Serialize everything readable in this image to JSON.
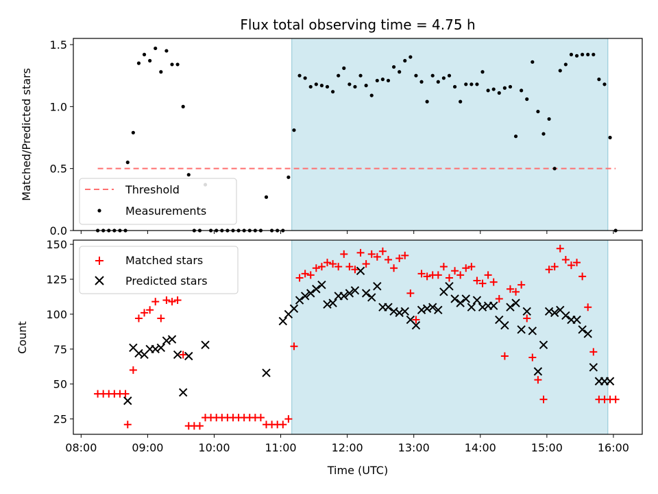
{
  "chart_data": [
    {
      "type": "scatter",
      "title": "Flux total observing time = 4.75 h",
      "ylabel": "Matched/Predicted stars",
      "xlim": [
        "07:53",
        "16:26"
      ],
      "ylim": [
        0,
        1.55
      ],
      "yticks": [
        0,
        0.5,
        1.0,
        1.5
      ],
      "ytick_labels": [
        "0.0",
        "0.5",
        "1.0",
        "1.5"
      ],
      "shaded_interval": {
        "start": "11:10",
        "end": "15:55",
        "color": "#add8e6"
      },
      "threshold": {
        "name": "Threshold",
        "value": 0.5,
        "x": [
          "08:15",
          "16:02"
        ],
        "color": "#ff6f6f"
      },
      "legend": {
        "position": "lower-left",
        "entries": [
          "Threshold",
          "Measurements"
        ]
      },
      "series": [
        {
          "name": "Measurements",
          "color": "#000000",
          "x": [
            "08:15",
            "08:20",
            "08:25",
            "08:30",
            "08:35",
            "08:40",
            "08:42",
            "08:47",
            "08:52",
            "08:57",
            "09:02",
            "09:07",
            "09:12",
            "09:17",
            "09:22",
            "09:27",
            "09:32",
            "09:37",
            "09:42",
            "09:47",
            "09:52",
            "09:57",
            "10:02",
            "10:07",
            "10:12",
            "10:17",
            "10:22",
            "10:27",
            "10:32",
            "10:37",
            "10:42",
            "10:47",
            "10:52",
            "10:57",
            "11:02",
            "11:07",
            "11:12",
            "11:17",
            "11:22",
            "11:27",
            "11:32",
            "11:37",
            "11:42",
            "11:47",
            "11:52",
            "11:57",
            "12:02",
            "12:07",
            "12:12",
            "12:17",
            "12:22",
            "12:27",
            "12:32",
            "12:37",
            "12:42",
            "12:47",
            "12:52",
            "12:57",
            "13:02",
            "13:07",
            "13:12",
            "13:17",
            "13:22",
            "13:27",
            "13:32",
            "13:37",
            "13:42",
            "13:47",
            "13:52",
            "13:57",
            "14:02",
            "14:07",
            "14:12",
            "14:17",
            "14:22",
            "14:27",
            "14:32",
            "14:37",
            "14:42",
            "14:47",
            "14:52",
            "14:57",
            "15:02",
            "15:07",
            "15:12",
            "15:17",
            "15:22",
            "15:27",
            "15:32",
            "15:37",
            "15:42",
            "15:47",
            "15:52",
            "15:57",
            "16:02"
          ],
          "y": [
            0,
            0,
            0,
            0,
            0,
            0,
            0.55,
            0.79,
            1.35,
            1.42,
            1.37,
            1.47,
            1.28,
            1.45,
            1.34,
            1.34,
            1.0,
            0.45,
            0,
            0,
            0.37,
            0,
            0,
            0,
            0,
            0,
            0,
            0,
            0,
            0,
            0,
            0.27,
            0,
            0,
            0,
            0.43,
            0.81,
            1.25,
            1.23,
            1.16,
            1.18,
            1.17,
            1.16,
            1.12,
            1.25,
            1.31,
            1.18,
            1.16,
            1.25,
            1.17,
            1.09,
            1.21,
            1.22,
            1.21,
            1.32,
            1.28,
            1.37,
            1.4,
            1.25,
            1.2,
            1.04,
            1.25,
            1.2,
            1.23,
            1.25,
            1.16,
            1.04,
            1.18,
            1.18,
            1.18,
            1.28,
            1.13,
            1.14,
            1.11,
            1.15,
            1.16,
            0.76,
            1.13,
            1.06,
            1.36,
            0.96,
            0.78,
            0.9,
            0.5,
            1.29,
            1.34,
            1.42,
            1.41,
            1.42,
            1.42,
            1.42,
            1.22,
            1.18,
            0.75,
            0
          ]
        }
      ]
    },
    {
      "type": "scatter",
      "xlabel": "Time (UTC)",
      "ylabel": "Count",
      "xlim": [
        "07:53",
        "16:26"
      ],
      "ylim": [
        14,
        153
      ],
      "yticks": [
        25,
        50,
        75,
        100,
        125,
        150
      ],
      "xticks": [
        "08:00",
        "09:00",
        "10:00",
        "11:00",
        "12:00",
        "13:00",
        "14:00",
        "15:00",
        "16:00"
      ],
      "shaded_interval": {
        "start": "11:10",
        "end": "15:55",
        "color": "#add8e6"
      },
      "legend": {
        "position": "top-left",
        "entries": [
          "Matched stars",
          "Predicted stars"
        ]
      },
      "series": [
        {
          "name": "Matched stars",
          "marker": "+",
          "color": "#ff0000",
          "x": [
            "08:15",
            "08:20",
            "08:25",
            "08:30",
            "08:35",
            "08:40",
            "08:42",
            "08:47",
            "08:52",
            "08:57",
            "09:02",
            "09:07",
            "09:12",
            "09:17",
            "09:22",
            "09:27",
            "09:32",
            "09:37",
            "09:42",
            "09:47",
            "09:52",
            "09:57",
            "10:02",
            "10:07",
            "10:12",
            "10:17",
            "10:22",
            "10:27",
            "10:32",
            "10:37",
            "10:42",
            "10:47",
            "10:52",
            "10:57",
            "11:02",
            "11:07",
            "11:12",
            "11:17",
            "11:22",
            "11:27",
            "11:32",
            "11:37",
            "11:42",
            "11:47",
            "11:52",
            "11:57",
            "12:02",
            "12:07",
            "12:12",
            "12:17",
            "12:22",
            "12:27",
            "12:32",
            "12:37",
            "12:42",
            "12:47",
            "12:52",
            "12:57",
            "13:02",
            "13:07",
            "13:12",
            "13:17",
            "13:22",
            "13:27",
            "13:32",
            "13:37",
            "13:42",
            "13:47",
            "13:52",
            "13:57",
            "14:02",
            "14:07",
            "14:12",
            "14:17",
            "14:22",
            "14:27",
            "14:32",
            "14:37",
            "14:42",
            "14:47",
            "14:52",
            "14:57",
            "15:02",
            "15:07",
            "15:12",
            "15:17",
            "15:22",
            "15:27",
            "15:32",
            "15:37",
            "15:42",
            "15:47",
            "15:52",
            "15:57",
            "16:02"
          ],
          "y": [
            43,
            43,
            43,
            43,
            43,
            43,
            21,
            60,
            97,
            101,
            103,
            109,
            97,
            110,
            109,
            110,
            71,
            20,
            20,
            20,
            26,
            26,
            26,
            26,
            26,
            26,
            26,
            26,
            26,
            26,
            26,
            21,
            21,
            21,
            21,
            25,
            77,
            126,
            129,
            128,
            133,
            134,
            137,
            136,
            134,
            143,
            134,
            132,
            144,
            136,
            143,
            141,
            145,
            139,
            133,
            140,
            142,
            115,
            96,
            129,
            127,
            128,
            128,
            134,
            126,
            131,
            128,
            133,
            134,
            124,
            122,
            128,
            123,
            111,
            70,
            118,
            116,
            121,
            97,
            69,
            53,
            39,
            132,
            134,
            147,
            139,
            135,
            137,
            127,
            105,
            73,
            39,
            39,
            39,
            39
          ]
        },
        {
          "name": "Predicted stars",
          "marker": "x",
          "color": "#000000",
          "x": [
            "08:42",
            "08:47",
            "08:52",
            "08:57",
            "09:02",
            "09:07",
            "09:12",
            "09:17",
            "09:22",
            "09:27",
            "09:32",
            "09:37",
            "09:52",
            "10:47",
            "11:02",
            "11:07",
            "11:12",
            "11:17",
            "11:22",
            "11:27",
            "11:32",
            "11:37",
            "11:42",
            "11:47",
            "11:52",
            "11:57",
            "12:02",
            "12:07",
            "12:12",
            "12:17",
            "12:22",
            "12:27",
            "12:32",
            "12:37",
            "12:42",
            "12:47",
            "12:52",
            "12:57",
            "13:02",
            "13:07",
            "13:12",
            "13:17",
            "13:22",
            "13:27",
            "13:32",
            "13:37",
            "13:42",
            "13:47",
            "13:52",
            "13:57",
            "14:02",
            "14:07",
            "14:12",
            "14:17",
            "14:22",
            "14:27",
            "14:32",
            "14:37",
            "14:42",
            "14:47",
            "14:52",
            "14:57",
            "15:02",
            "15:07",
            "15:12",
            "15:17",
            "15:22",
            "15:27",
            "15:32",
            "15:37",
            "15:42",
            "15:47",
            "15:52",
            "15:57"
          ],
          "y": [
            38,
            76,
            72,
            71,
            75,
            75,
            76,
            81,
            82,
            71,
            44,
            70,
            78,
            58,
            95,
            100,
            104,
            110,
            113,
            115,
            118,
            121,
            107,
            108,
            113,
            113,
            115,
            117,
            131,
            115,
            112,
            120,
            105,
            105,
            102,
            101,
            102,
            96,
            92,
            103,
            104,
            105,
            103,
            116,
            120,
            111,
            108,
            111,
            105,
            110,
            105,
            106,
            106,
            96,
            92,
            105,
            108,
            89,
            102,
            88,
            59,
            78,
            102,
            101,
            103,
            99,
            96,
            96,
            89,
            86,
            62,
            52,
            52,
            52
          ]
        }
      ]
    }
  ]
}
